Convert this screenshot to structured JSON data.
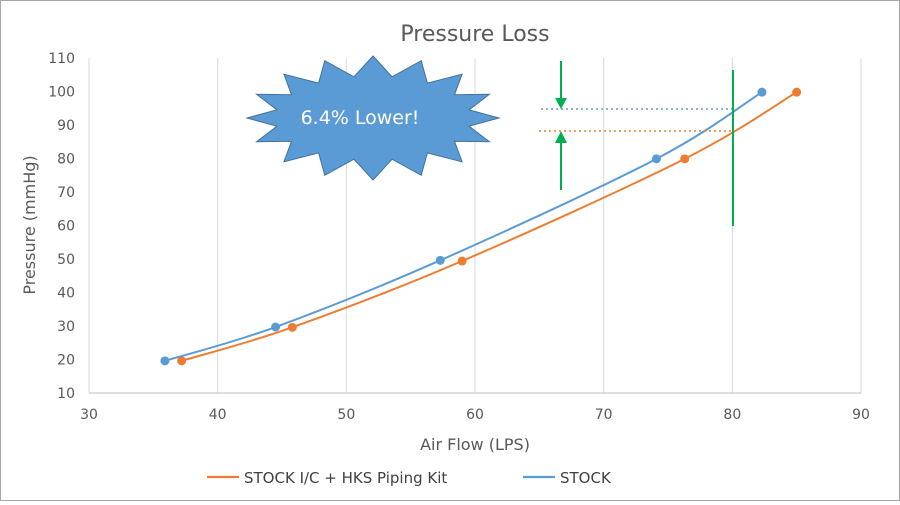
{
  "chart_data": {
    "type": "scatter",
    "title": "Pressure Loss",
    "xlabel": "Air Flow (LPS)",
    "ylabel": "Pressure (mmHg)",
    "xlim": [
      30,
      90
    ],
    "ylim": [
      10,
      110
    ],
    "xticks": [
      "30",
      "40",
      "50",
      "60",
      "70",
      "80",
      "90"
    ],
    "yticks": [
      "10",
      "20",
      "30",
      "40",
      "50",
      "60",
      "70",
      "80",
      "90",
      "100",
      "110"
    ],
    "grid": "vertical",
    "legend_position": "bottom",
    "series": [
      {
        "name": "STOCK I/C + HKS Piping Kit",
        "color": "#ed7d31",
        "points": [
          [
            37.2,
            19.6
          ],
          [
            45.8,
            29.6
          ],
          [
            59.0,
            49.4
          ],
          [
            76.3,
            79.9
          ],
          [
            85.0,
            99.8
          ]
        ]
      },
      {
        "name": "STOCK",
        "color": "#5b9bd5",
        "points": [
          [
            35.9,
            19.6
          ],
          [
            44.5,
            29.7
          ],
          [
            57.3,
            49.6
          ],
          [
            74.1,
            79.9
          ],
          [
            82.3,
            99.8
          ]
        ]
      }
    ],
    "annotations": {
      "callout_text": "6.4% Lower!",
      "callout_color": "#5b9bd5",
      "indicator_color": "#00b050"
    }
  }
}
